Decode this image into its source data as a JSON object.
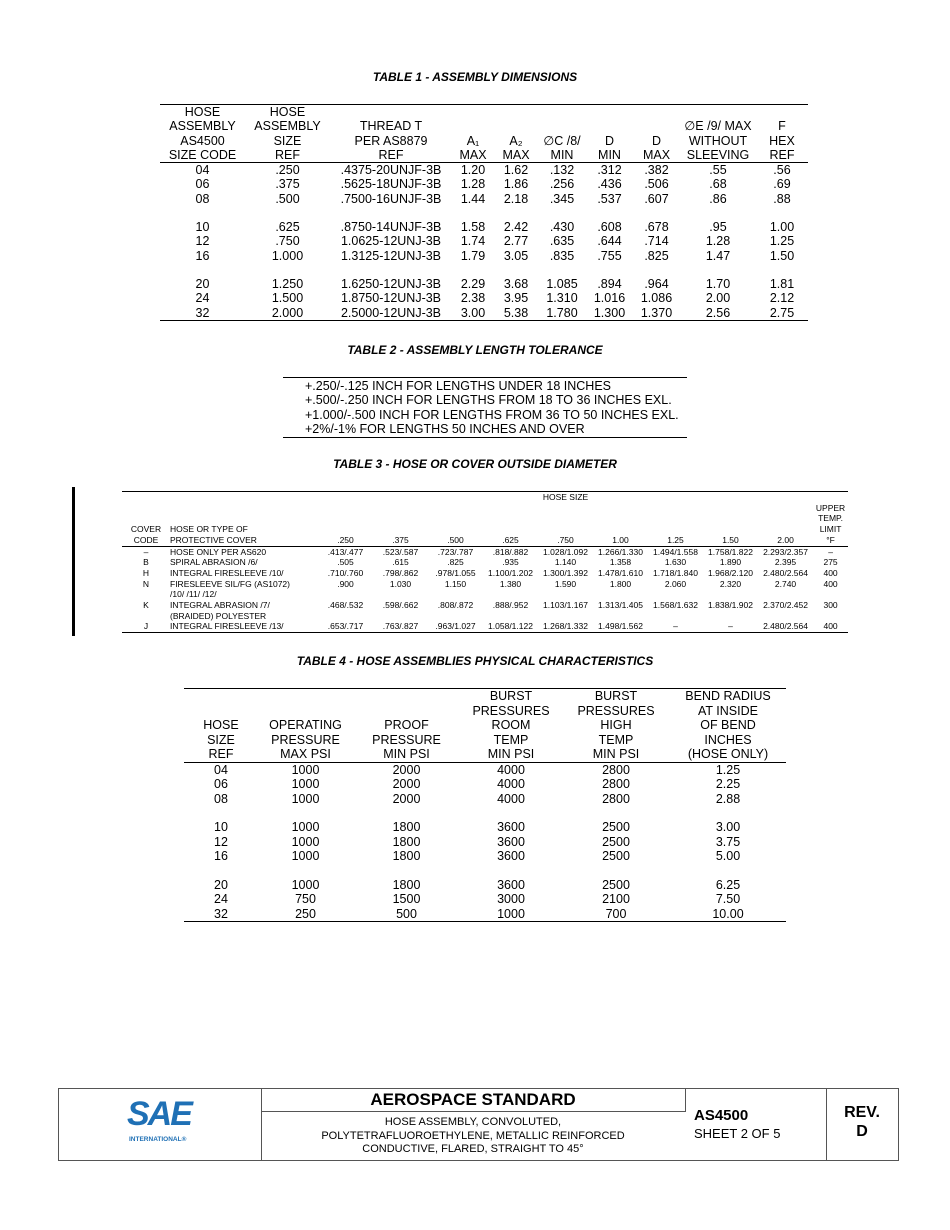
{
  "table1": {
    "title": "TABLE 1 - ASSEMBLY DIMENSIONS",
    "columns": [
      [
        "HOSE",
        "ASSEMBLY",
        "AS4500",
        "SIZE CODE"
      ],
      [
        "HOSE",
        "ASSEMBLY",
        "SIZE",
        "REF"
      ],
      [
        "THREAD T",
        "PER AS8879",
        "REF"
      ],
      [
        "A₁",
        "MAX"
      ],
      [
        "A₂",
        "MAX"
      ],
      [
        "∅C /8/",
        "MIN"
      ],
      [
        "D",
        "MIN"
      ],
      [
        "D",
        "MAX"
      ],
      [
        "∅E /9/ MAX",
        "WITHOUT",
        "SLEEVING"
      ],
      [
        "F",
        "HEX",
        "REF"
      ]
    ],
    "groups": [
      [
        [
          "04",
          ".250",
          ".4375-20UNJF-3B",
          "1.20",
          "1.62",
          ".132",
          ".312",
          ".382",
          ".55",
          ".56"
        ],
        [
          "06",
          ".375",
          ".5625-18UNJF-3B",
          "1.28",
          "1.86",
          ".256",
          ".436",
          ".506",
          ".68",
          ".69"
        ],
        [
          "08",
          ".500",
          ".7500-16UNJF-3B",
          "1.44",
          "2.18",
          ".345",
          ".537",
          ".607",
          ".86",
          ".88"
        ]
      ],
      [
        [
          "10",
          ".625",
          ".8750-14UNJF-3B",
          "1.58",
          "2.42",
          ".430",
          ".608",
          ".678",
          ".95",
          "1.00"
        ],
        [
          "12",
          ".750",
          "1.0625-12UNJ-3B",
          "1.74",
          "2.77",
          ".635",
          ".644",
          ".714",
          "1.28",
          "1.25"
        ],
        [
          "16",
          "1.000",
          "1.3125-12UNJ-3B",
          "1.79",
          "3.05",
          ".835",
          ".755",
          ".825",
          "1.47",
          "1.50"
        ]
      ],
      [
        [
          "20",
          "1.250",
          "1.6250-12UNJ-3B",
          "2.29",
          "3.68",
          "1.085",
          ".894",
          ".964",
          "1.70",
          "1.81"
        ],
        [
          "24",
          "1.500",
          "1.8750-12UNJ-3B",
          "2.38",
          "3.95",
          "1.310",
          "1.016",
          "1.086",
          "2.00",
          "2.12"
        ],
        [
          "32",
          "2.000",
          "2.5000-12UNJ-3B",
          "3.00",
          "5.38",
          "1.780",
          "1.300",
          "1.370",
          "2.56",
          "2.75"
        ]
      ]
    ]
  },
  "table2": {
    "title": "TABLE 2 - ASSEMBLY LENGTH TOLERANCE",
    "lines": [
      "+.250/-.125 INCH FOR LENGTHS UNDER 18 INCHES",
      "+.500/-.250 INCH FOR LENGTHS FROM 18 TO 36 INCHES EXL.",
      "+1.000/-.500 INCH FOR LENGTHS FROM 36 TO 50 INCHES EXL.",
      "+2%/-1% FOR LENGTHS 50 INCHES AND OVER"
    ]
  },
  "table3": {
    "title": "TABLE 3 - HOSE OR COVER OUTSIDE DIAMETER",
    "span_header": "HOSE SIZE",
    "columns": [
      [
        "COVER",
        "CODE"
      ],
      [
        "HOSE OR TYPE OF",
        "PROTECTIVE COVER"
      ],
      [
        ".250"
      ],
      [
        ".375"
      ],
      [
        ".500"
      ],
      [
        ".625"
      ],
      [
        ".750"
      ],
      [
        "1.00"
      ],
      [
        "1.25"
      ],
      [
        "1.50"
      ],
      [
        "2.00"
      ],
      [
        "UPPER",
        "TEMP.",
        "LIMIT",
        "°F"
      ]
    ],
    "groups": [
      [
        [
          "–",
          "HOSE ONLY PER AS620",
          ".413/.477",
          ".523/.587",
          ".723/.787",
          ".818/.882",
          "1.028/1.092",
          "1.266/1.330",
          "1.494/1.558",
          "1.758/1.822",
          "2.293/2.357",
          "–"
        ],
        [
          "B",
          "SPIRAL ABRASION /6/",
          ".505",
          ".615",
          ".825",
          ".935",
          "1.140",
          "1.358",
          "1.630",
          "1.890",
          "2.395",
          "275"
        ],
        [
          "H",
          "INTEGRAL FIRESLEEVE /10/",
          ".710/.760",
          ".798/.862",
          ".978/1.055",
          "1.100/1.202",
          "1.300/1.392",
          "1.478/1.610",
          "1.718/1.840",
          "1.968/2.120",
          "2.480/2.564",
          "400"
        ],
        [
          "N",
          [
            "FIRESLEEVE SIL/FG (AS1072)",
            "/10/ /11/ /12/"
          ],
          ".900",
          "1.030",
          "1.150",
          "1.380",
          "1.590",
          "1.800",
          "2.060",
          "2.320",
          "2.740",
          "400"
        ],
        [
          "K",
          [
            "INTEGRAL ABRASION /7/",
            "(BRAIDED) POLYESTER"
          ],
          ".468/.532",
          ".598/.662",
          ".808/.872",
          ".888/.952",
          "1.103/1.167",
          "1.313/1.405",
          "1.568/1.632",
          "1.838/1.902",
          "2.370/2.452",
          "300"
        ],
        [
          "J",
          "INTEGRAL FIRESLEEVE /13/",
          ".653/.717",
          ".763/.827",
          ".963/1.027",
          "1.058/1.122",
          "1.268/1.332",
          "1.498/1.562",
          "–",
          "–",
          "2.480/2.564",
          "400"
        ]
      ]
    ]
  },
  "table4": {
    "title": "TABLE 4 - HOSE ASSEMBLIES PHYSICAL CHARACTERISTICS",
    "columns": [
      [
        "HOSE",
        "SIZE",
        "REF"
      ],
      [
        "OPERATING",
        "PRESSURE",
        "MAX PSI"
      ],
      [
        "PROOF",
        "PRESSURE",
        "MIN PSI"
      ],
      [
        "BURST",
        "PRESSURES",
        "ROOM",
        "TEMP",
        "MIN PSI"
      ],
      [
        "BURST",
        "PRESSURES",
        "HIGH",
        "TEMP",
        "MIN PSI"
      ],
      [
        "BEND RADIUS",
        "AT INSIDE",
        "OF BEND",
        "INCHES",
        "(HOSE ONLY)"
      ]
    ],
    "groups": [
      [
        [
          "04",
          "1000",
          "2000",
          "4000",
          "2800",
          "1.25"
        ],
        [
          "06",
          "1000",
          "2000",
          "4000",
          "2800",
          "2.25"
        ],
        [
          "08",
          "1000",
          "2000",
          "4000",
          "2800",
          "2.88"
        ]
      ],
      [
        [
          "10",
          "1000",
          "1800",
          "3600",
          "2500",
          "3.00"
        ],
        [
          "12",
          "1000",
          "1800",
          "3600",
          "2500",
          "3.75"
        ],
        [
          "16",
          "1000",
          "1800",
          "3600",
          "2500",
          "5.00"
        ]
      ],
      [
        [
          "20",
          "1000",
          "1800",
          "3600",
          "2500",
          "6.25"
        ],
        [
          "24",
          "750",
          "1500",
          "3000",
          "2100",
          "7.50"
        ],
        [
          "32",
          "250",
          "500",
          "1000",
          "700",
          "10.00"
        ]
      ]
    ]
  },
  "footer": {
    "logo": {
      "mark": "SAE",
      "subtext": "INTERNATIONAL®"
    },
    "heading": "AEROSPACE STANDARD",
    "description": [
      "HOSE ASSEMBLY, CONVOLUTED,",
      "POLYTETRAFLUOROETHYLENE, METALLIC REINFORCED",
      "CONDUCTIVE, FLARED, STRAIGHT TO 45°"
    ],
    "document": "AS4500",
    "sheet": "SHEET 2 OF 5",
    "rev_label": "REV.",
    "rev": "D"
  }
}
